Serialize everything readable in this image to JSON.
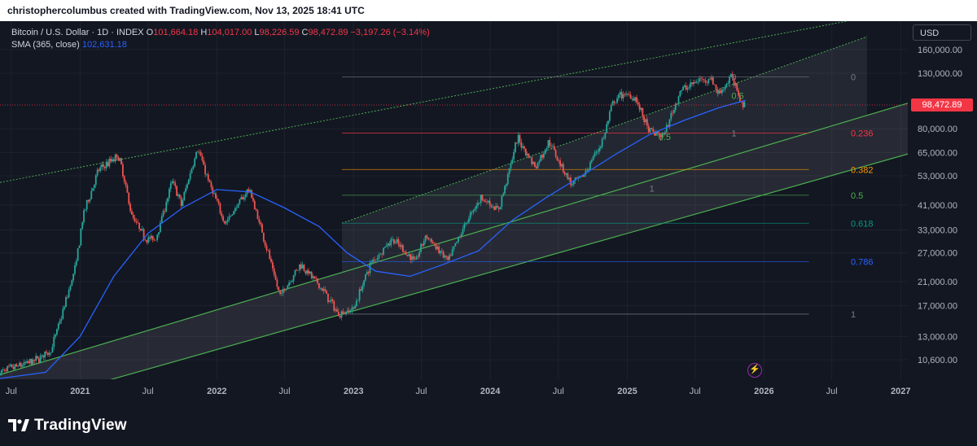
{
  "header": {
    "attribution": "christophercolumbus created with TradingView.com, Nov 13, 2025 18:41 UTC"
  },
  "legend": {
    "symbol": "Bitcoin / U.S. Dollar · 1D · INDEX",
    "open_label": "O",
    "open": "101,664.18",
    "high_label": "H",
    "high": "104,017.00",
    "low_label": "L",
    "low": "98,226.59",
    "close_label": "C",
    "close": "98,472.89",
    "change": "−3,197.26 (−3.14%)",
    "indicator": "SMA (365, close)",
    "indicator_value": "102,631.18"
  },
  "scale_button": "USD",
  "last_price": "98,472.89",
  "brand": "TradingView",
  "colors": {
    "background": "#131722",
    "candle_up": "#26a69a",
    "candle_down": "#ef5350",
    "sma": "#2962ff",
    "last_price": "#f23645",
    "channel_line": "#4caf50"
  },
  "chart_data": {
    "type": "candlestick",
    "title": "Bitcoin / U.S. Dollar · 1D · INDEX",
    "y_scale": "log",
    "x_ticks": [
      "Jul",
      "2021",
      "Jul",
      "2022",
      "Jul",
      "2023",
      "Jul",
      "2024",
      "Jul",
      "2025",
      "Jul",
      "2026",
      "Jul",
      "2027"
    ],
    "y_ticks": [
      "160,000.00",
      "130,000.00",
      "80,000.00",
      "65,000.00",
      "53,000.00",
      "41,000.00",
      "33,000.00",
      "27,000.00",
      "21,000.00",
      "17,000.00",
      "13,000.00",
      "10,600.00"
    ],
    "y_tick_values": [
      160000,
      130000,
      80000,
      65000,
      53000,
      41000,
      33000,
      27000,
      21000,
      17000,
      13000,
      10600
    ],
    "ylim": [
      9000,
      200000
    ],
    "xlim": [
      "2020-06-01",
      "2027-01-20"
    ],
    "price_path": [
      [
        "2020-06-01",
        9500
      ],
      [
        "2020-09-01",
        10500
      ],
      [
        "2020-10-15",
        11500
      ],
      [
        "2020-11-15",
        16000
      ],
      [
        "2020-12-20",
        24000
      ],
      [
        "2021-01-10",
        38000
      ],
      [
        "2021-02-20",
        56000
      ],
      [
        "2021-04-14",
        63000
      ],
      [
        "2021-05-20",
        37000
      ],
      [
        "2021-06-22",
        31000
      ],
      [
        "2021-07-20",
        30000
      ],
      [
        "2021-09-05",
        51000
      ],
      [
        "2021-09-28",
        41000
      ],
      [
        "2021-11-10",
        68000
      ],
      [
        "2021-12-15",
        48000
      ],
      [
        "2022-01-24",
        35000
      ],
      [
        "2022-03-28",
        47500
      ],
      [
        "2022-05-12",
        29000
      ],
      [
        "2022-06-18",
        18500
      ],
      [
        "2022-08-13",
        24500
      ],
      [
        "2022-10-15",
        19200
      ],
      [
        "2022-11-21",
        15800
      ],
      [
        "2023-01-01",
        16600
      ],
      [
        "2023-02-15",
        24500
      ],
      [
        "2023-04-14",
        30500
      ],
      [
        "2023-06-15",
        25000
      ],
      [
        "2023-07-13",
        31500
      ],
      [
        "2023-09-11",
        25000
      ],
      [
        "2023-10-25",
        34500
      ],
      [
        "2023-12-08",
        44000
      ],
      [
        "2024-01-23",
        39000
      ],
      [
        "2024-03-14",
        73700
      ],
      [
        "2024-05-01",
        57000
      ],
      [
        "2024-06-06",
        71500
      ],
      [
        "2024-08-05",
        49000
      ],
      [
        "2024-09-06",
        53000
      ],
      [
        "2024-10-29",
        73000
      ],
      [
        "2024-11-22",
        99000
      ],
      [
        "2024-12-17",
        108000
      ],
      [
        "2025-01-21",
        106000
      ],
      [
        "2025-02-28",
        78000
      ],
      [
        "2025-04-08",
        75000
      ],
      [
        "2025-05-22",
        111000
      ],
      [
        "2025-07-14",
        123000
      ],
      [
        "2025-08-14",
        124000
      ],
      [
        "2025-09-01",
        108000
      ],
      [
        "2025-10-06",
        126000
      ],
      [
        "2025-11-04",
        100000
      ],
      [
        "2025-11-13",
        98472.89
      ]
    ],
    "sma": {
      "name": "SMA (365, close)",
      "points": [
        [
          "2020-06-01",
          9000
        ],
        [
          "2020-10-01",
          9500
        ],
        [
          "2021-01-01",
          13000
        ],
        [
          "2021-04-01",
          22000
        ],
        [
          "2021-07-01",
          32000
        ],
        [
          "2021-10-01",
          40000
        ],
        [
          "2022-01-01",
          47000
        ],
        [
          "2022-04-01",
          46000
        ],
        [
          "2022-07-01",
          40000
        ],
        [
          "2022-10-01",
          34000
        ],
        [
          "2022-12-15",
          27000
        ],
        [
          "2023-03-01",
          23000
        ],
        [
          "2023-06-01",
          22000
        ],
        [
          "2023-09-01",
          24500
        ],
        [
          "2023-12-01",
          27500
        ],
        [
          "2024-03-01",
          36000
        ],
        [
          "2024-06-01",
          44000
        ],
        [
          "2024-09-01",
          53000
        ],
        [
          "2024-12-01",
          64000
        ],
        [
          "2025-03-01",
          76000
        ],
        [
          "2025-06-01",
          86000
        ],
        [
          "2025-09-01",
          96000
        ],
        [
          "2025-11-13",
          102631.18
        ]
      ]
    },
    "fib_retracement": {
      "levels": [
        "0",
        "0.236",
        "0.382",
        "0.5",
        "0.618",
        "0.786",
        "1"
      ],
      "prices": [
        126000,
        77000,
        56000,
        44700,
        35000,
        25000,
        15800
      ],
      "colors": [
        "#787b86",
        "#f23645",
        "#ff9800",
        "#4caf50",
        "#089981",
        "#2962ff",
        "#787b86"
      ]
    },
    "annotations": [
      {
        "text": "0",
        "date": "2025-10-06",
        "price": 126000,
        "color": "#787b86"
      },
      {
        "text": "0.5",
        "date": "2025-10-06",
        "price": 107000,
        "color": "#4caf50"
      },
      {
        "text": "1",
        "date": "2025-10-06",
        "price": 77000,
        "color": "#787b86"
      },
      {
        "text": "0.5",
        "date": "2025-03-25",
        "price": 74500,
        "color": "#4caf50"
      },
      {
        "text": "1",
        "date": "2025-03-01",
        "price": 47500,
        "color": "#787b86"
      }
    ]
  }
}
